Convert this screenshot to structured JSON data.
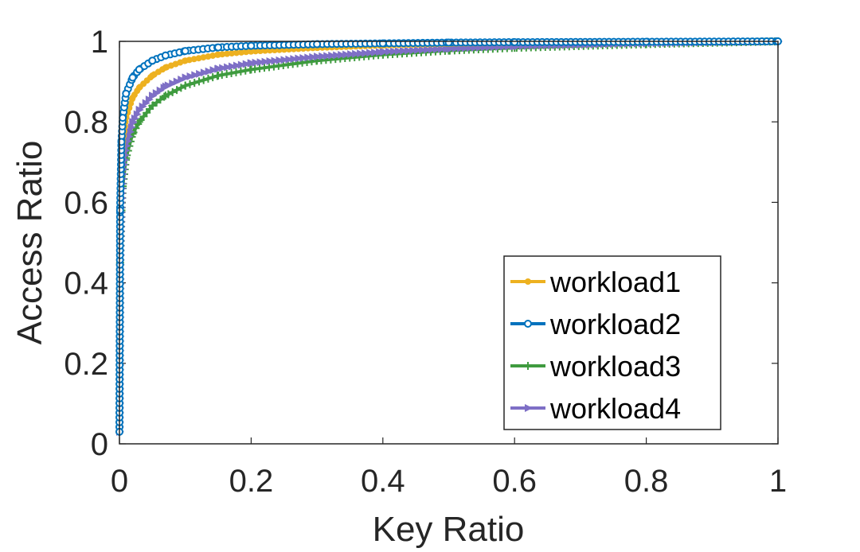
{
  "chart_data": {
    "type": "line",
    "title": "",
    "xlabel": "Key Ratio",
    "ylabel": "Access Ratio",
    "xlim": [
      0,
      1
    ],
    "ylim": [
      0,
      1
    ],
    "xticks": [
      "0",
      "0.2",
      "0.4",
      "0.6",
      "0.8",
      "1"
    ],
    "yticks": [
      "0",
      "0.2",
      "0.4",
      "0.6",
      "0.8",
      "1"
    ],
    "grid": false,
    "legend_position": "bottom-right",
    "series": [
      {
        "name": "workload1",
        "color": "#EDB120",
        "marker": "dot",
        "x": [
          0,
          0.001,
          0.003,
          0.005,
          0.01,
          0.02,
          0.03,
          0.05,
          0.07,
          0.1,
          0.15,
          0.2,
          0.3,
          0.4,
          0.5,
          0.6,
          0.8,
          1
        ],
        "y": [
          0.03,
          0.5,
          0.68,
          0.75,
          0.81,
          0.86,
          0.885,
          0.915,
          0.935,
          0.952,
          0.967,
          0.975,
          0.984,
          0.99,
          0.994,
          0.996,
          0.998,
          1
        ]
      },
      {
        "name": "workload2",
        "color": "#0072BD",
        "marker": "circle",
        "x": [
          0,
          0.001,
          0.003,
          0.005,
          0.01,
          0.02,
          0.03,
          0.05,
          0.07,
          0.1,
          0.15,
          0.2,
          0.3,
          0.4,
          0.5,
          0.6,
          0.8,
          1
        ],
        "y": [
          0.03,
          0.58,
          0.75,
          0.81,
          0.87,
          0.91,
          0.93,
          0.952,
          0.965,
          0.976,
          0.985,
          0.989,
          0.993,
          0.995,
          0.997,
          0.998,
          0.999,
          1
        ]
      },
      {
        "name": "workload3",
        "color": "#3F9B3F",
        "marker": "plus",
        "x": [
          0,
          0.001,
          0.003,
          0.005,
          0.01,
          0.02,
          0.03,
          0.05,
          0.07,
          0.1,
          0.15,
          0.2,
          0.3,
          0.4,
          0.5,
          0.6,
          0.8,
          1
        ],
        "y": [
          0.03,
          0.45,
          0.58,
          0.64,
          0.71,
          0.77,
          0.8,
          0.84,
          0.865,
          0.89,
          0.915,
          0.93,
          0.952,
          0.967,
          0.977,
          0.984,
          0.993,
          1
        ]
      },
      {
        "name": "workload4",
        "color": "#7E6FC6",
        "marker": "triangle-right",
        "x": [
          0,
          0.001,
          0.003,
          0.005,
          0.01,
          0.02,
          0.03,
          0.05,
          0.07,
          0.1,
          0.15,
          0.2,
          0.3,
          0.4,
          0.5,
          0.6,
          0.8,
          1
        ],
        "y": [
          0.03,
          0.47,
          0.61,
          0.67,
          0.74,
          0.8,
          0.83,
          0.865,
          0.888,
          0.91,
          0.932,
          0.946,
          0.962,
          0.974,
          0.982,
          0.988,
          0.995,
          1
        ]
      }
    ]
  }
}
